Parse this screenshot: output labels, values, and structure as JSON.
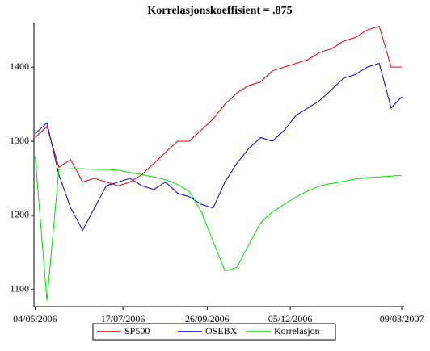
{
  "chart_data": {
    "type": "line",
    "title": "Korrelasjonskoeffisient =  .875",
    "x": [
      "2006-05-04",
      "2006-05-14",
      "2006-05-24",
      "2006-06-03",
      "2006-06-13",
      "2006-06-23",
      "2006-07-03",
      "2006-07-13",
      "2006-07-23",
      "2006-08-02",
      "2006-08-12",
      "2006-08-22",
      "2006-09-01",
      "2006-09-11",
      "2006-09-21",
      "2006-10-01",
      "2006-10-11",
      "2006-10-21",
      "2006-10-31",
      "2006-11-10",
      "2006-11-20",
      "2006-11-30",
      "2006-12-10",
      "2006-12-20",
      "2006-12-30",
      "2007-01-09",
      "2007-01-19",
      "2007-01-29",
      "2007-02-08",
      "2007-02-18",
      "2007-02-28",
      "2007-03-09"
    ],
    "series": [
      {
        "name": "SP500",
        "color": "#e00000",
        "values": [
          1305,
          1320,
          1265,
          1275,
          1245,
          1250,
          1245,
          1240,
          1245,
          1255,
          1270,
          1285,
          1300,
          1300,
          1315,
          1330,
          1350,
          1365,
          1375,
          1380,
          1395,
          1400,
          1405,
          1410,
          1420,
          1425,
          1435,
          1440,
          1450,
          1455,
          1400,
          1400
        ]
      },
      {
        "name": "OSEBX",
        "color": "#0000c0",
        "values": [
          1310,
          1325,
          1255,
          1210,
          1180,
          1210,
          1240,
          1245,
          1250,
          1240,
          1235,
          1245,
          1230,
          1225,
          1215,
          1210,
          1245,
          1270,
          1290,
          1305,
          1300,
          1315,
          1335,
          1345,
          1355,
          1370,
          1385,
          1390,
          1400,
          1405,
          1345,
          1360
        ]
      },
      {
        "name": "Korrelasjon",
        "color": "#00e000",
        "values": [
          1280,
          1085,
          1262,
          1263,
          1263,
          1262,
          1262,
          1261,
          1258,
          1255,
          1252,
          1248,
          1242,
          1232,
          1205,
          1165,
          1125,
          1130,
          1160,
          1190,
          1205,
          1215,
          1225,
          1233,
          1240,
          1243,
          1246,
          1249,
          1251,
          1252,
          1253,
          1254
        ]
      }
    ],
    "xlim": [
      "2006-05-03",
      "2007-03-11"
    ],
    "xticks": [
      {
        "value": "2006-05-04",
        "label": "04/05/2006"
      },
      {
        "value": "2006-07-17",
        "label": "17/07/2006"
      },
      {
        "value": "2006-09-26",
        "label": "26/09/2006"
      },
      {
        "value": "2006-12-05",
        "label": "05/12/2006"
      },
      {
        "value": "2007-03-09",
        "label": "09/03/2007"
      }
    ],
    "ylim": [
      1077,
      1460
    ],
    "yticks": [
      1100,
      1200,
      1300,
      1400
    ],
    "grid": false,
    "legend": "bottom"
  }
}
